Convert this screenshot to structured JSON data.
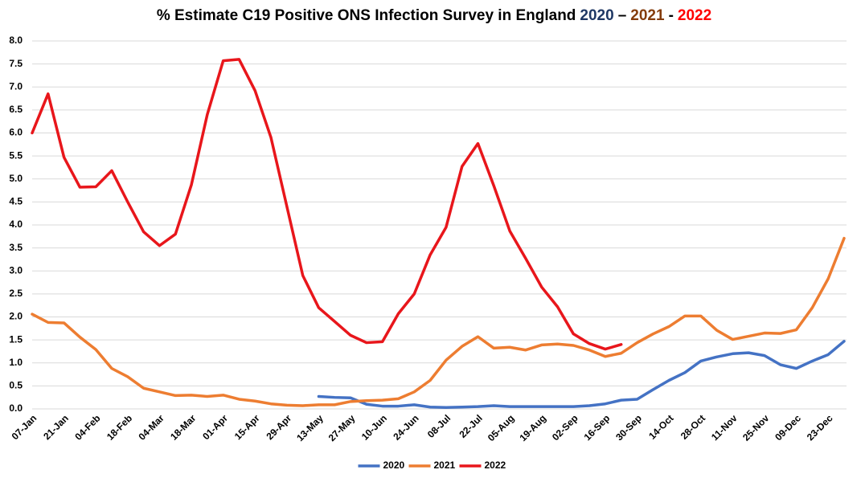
{
  "chart_data": {
    "type": "line",
    "title_parts": [
      {
        "text": "% Estimate C19 Positive ONS Infection Survey in England",
        "color": "#000000"
      },
      {
        "text": "2020",
        "color": "#1f3864"
      },
      {
        "text": "–",
        "color": "#000000"
      },
      {
        "text": "2021",
        "color": "#843c0c"
      },
      {
        "text": "-",
        "color": "#000000"
      },
      {
        "text": "2022",
        "color": "#ff0000"
      }
    ],
    "categories": [
      "07-Jan",
      null,
      "21-Jan",
      null,
      "04-Feb",
      null,
      "18-Feb",
      null,
      "04-Mar",
      null,
      "18-Mar",
      null,
      "01-Apr",
      null,
      "15-Apr",
      null,
      "29-Apr",
      null,
      "13-May",
      null,
      "27-May",
      null,
      "10-Jun",
      null,
      "24-Jun",
      null,
      "08-Jul",
      null,
      "22-Jul",
      null,
      "05-Aug",
      null,
      "19-Aug",
      null,
      "02-Sep",
      null,
      "16-Sep",
      null,
      "30-Sep",
      null,
      "14-Oct",
      null,
      "28-Oct",
      null,
      "11-Nov",
      null,
      "25-Nov",
      null,
      "09-Dec",
      null,
      "23-Dec",
      null
    ],
    "series": [
      {
        "name": "2020",
        "color": "#4472c4",
        "values": [
          null,
          null,
          null,
          null,
          null,
          null,
          null,
          null,
          null,
          null,
          null,
          null,
          null,
          null,
          null,
          null,
          null,
          null,
          0.27,
          0.25,
          0.24,
          0.1,
          0.06,
          0.06,
          0.09,
          0.04,
          0.03,
          0.04,
          0.05,
          0.07,
          0.05,
          0.05,
          0.05,
          0.05,
          0.05,
          0.07,
          0.11,
          0.19,
          0.21,
          0.42,
          0.62,
          0.79,
          1.04,
          1.13,
          1.2,
          1.22,
          1.16,
          0.96,
          0.88,
          1.04,
          1.18,
          1.47
        ]
      },
      {
        "name": "2021",
        "color": "#ed7d31",
        "values": [
          2.06,
          1.88,
          1.87,
          1.56,
          1.29,
          0.88,
          0.7,
          0.45,
          0.37,
          0.29,
          0.3,
          0.27,
          0.3,
          0.21,
          0.17,
          0.11,
          0.08,
          0.07,
          0.09,
          0.09,
          0.16,
          0.18,
          0.19,
          0.22,
          0.37,
          0.62,
          1.06,
          1.36,
          1.57,
          1.32,
          1.34,
          1.28,
          1.39,
          1.41,
          1.38,
          1.28,
          1.14,
          1.21,
          1.44,
          1.63,
          1.79,
          2.02,
          2.02,
          1.71,
          1.51,
          1.58,
          1.65,
          1.64,
          1.72,
          2.2,
          2.83,
          3.71
        ]
      },
      {
        "name": "2022",
        "color": "#e8161b",
        "values": [
          6.0,
          6.85,
          5.47,
          4.82,
          4.83,
          5.18,
          4.5,
          3.85,
          3.55,
          3.8,
          4.87,
          6.4,
          7.57,
          7.6,
          6.92,
          5.9,
          4.4,
          2.9,
          2.2,
          1.9,
          1.6,
          1.44,
          1.46,
          2.07,
          2.5,
          3.35,
          3.95,
          5.27,
          5.77,
          4.85,
          3.87,
          3.27,
          2.65,
          2.22,
          1.63,
          1.42,
          1.3,
          1.4,
          null,
          null,
          null,
          null,
          null,
          null,
          null,
          null,
          null,
          null,
          null,
          null,
          null,
          null
        ]
      }
    ],
    "ylim": [
      0,
      8
    ],
    "yticks": [
      {
        "value": 0,
        "label": "0.0"
      },
      {
        "value": 0.5,
        "label": "0.5"
      },
      {
        "value": 1,
        "label": "1.0"
      },
      {
        "value": 1.5,
        "label": "1.5"
      },
      {
        "value": 2,
        "label": "2.0"
      },
      {
        "value": 2.5,
        "label": "2.5"
      },
      {
        "value": 3,
        "label": "3.0"
      },
      {
        "value": 3.5,
        "label": "3.5"
      },
      {
        "value": 4,
        "label": "4.0"
      },
      {
        "value": 4.5,
        "label": "4.5"
      },
      {
        "value": 5,
        "label": "5.0"
      },
      {
        "value": 5.5,
        "label": "5.5"
      },
      {
        "value": 6,
        "label": "6.0"
      },
      {
        "value": 6.5,
        "label": "6.5"
      },
      {
        "value": 7,
        "label": "7.0"
      },
      {
        "value": 7.5,
        "label": "7.5"
      },
      {
        "value": 8,
        "label": "8.0"
      }
    ],
    "grid": true,
    "legend": "bottom"
  }
}
